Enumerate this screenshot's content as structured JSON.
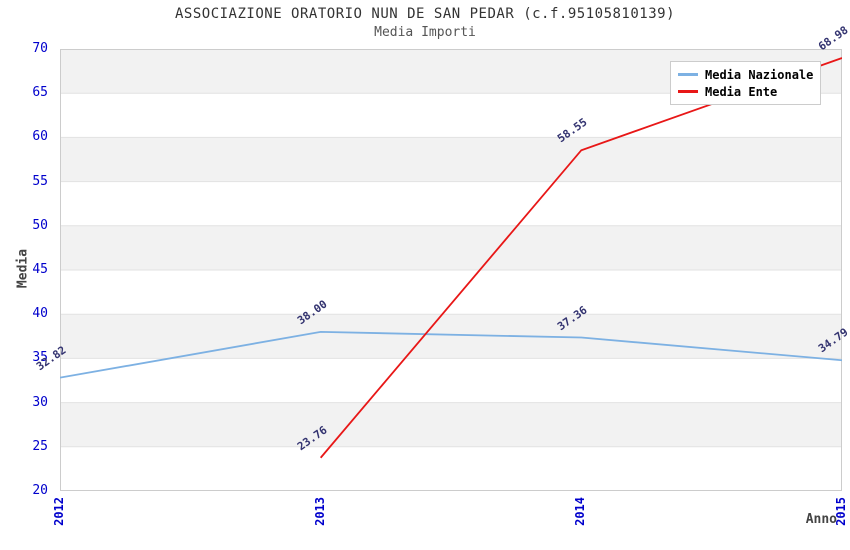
{
  "title": "ASSOCIAZIONE ORATORIO NUN DE SAN PEDAR (c.f.95105810139)",
  "subtitle": "Media Importi",
  "chart_data": {
    "type": "line",
    "x": [
      "2012",
      "2013",
      "2014",
      "2015"
    ],
    "xlabel": "Anno",
    "ylabel": "Media",
    "ylim": [
      20,
      70
    ],
    "ytick_step": 5,
    "grid": true,
    "legend_position": "top-right",
    "series": [
      {
        "name": "Media Nazionale",
        "color": "#7db1e3",
        "values": [
          32.82,
          38.0,
          37.36,
          34.79
        ],
        "labels": [
          "32.82",
          "38.00",
          "37.36",
          "34.79"
        ]
      },
      {
        "name": "Media Ente",
        "color": "#e81717",
        "values": [
          null,
          23.76,
          58.55,
          68.98
        ],
        "labels": [
          null,
          "23.76",
          "58.55",
          "68.98"
        ]
      }
    ]
  },
  "colors": {
    "band_gray": "#f2f2f2",
    "gridline": "#e2e2e2",
    "plot_border": "#cccccc",
    "tick_blue": "#0000cc",
    "point_label": "#333370",
    "title_text": "#333333",
    "subtitle_text": "#555555",
    "axis_label": "#444444"
  }
}
